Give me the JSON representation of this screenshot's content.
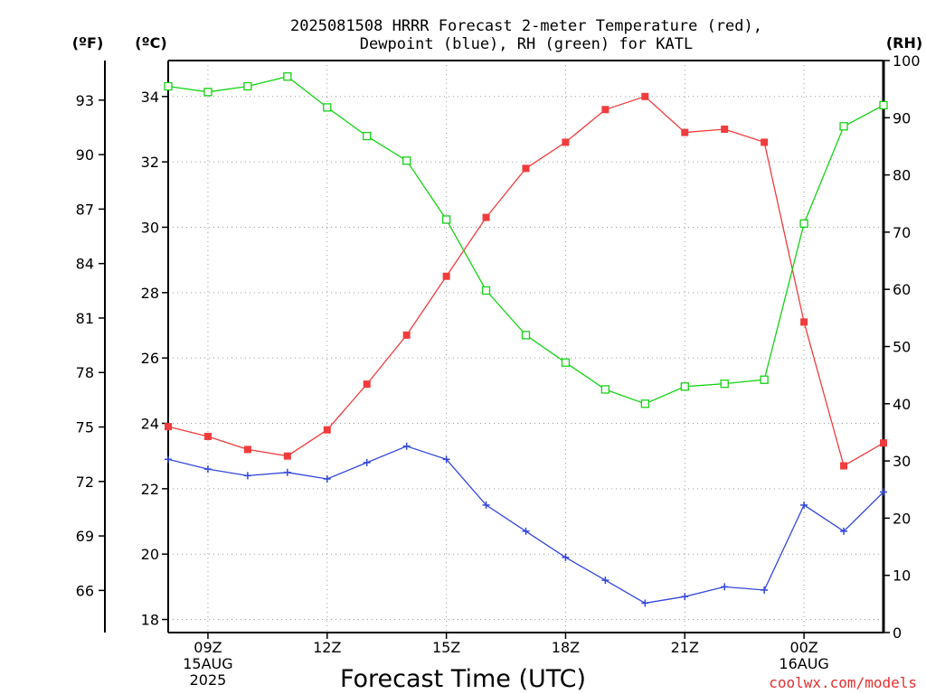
{
  "chart_data": {
    "type": "line",
    "title_lines": [
      "2025081508 HRRR Forecast 2-meter Temperature (red),",
      "Dewpoint (blue), RH (green) for KATL"
    ],
    "xlabel": "Forecast Time (UTC)",
    "credit": "coolwx.com/models",
    "x": [
      "08Z",
      "09Z",
      "10Z",
      "11Z",
      "12Z",
      "13Z",
      "14Z",
      "15Z",
      "16Z",
      "17Z",
      "18Z",
      "19Z",
      "20Z",
      "21Z",
      "22Z",
      "23Z",
      "00Z",
      "01Z",
      "02Z"
    ],
    "x_tick_labels": [
      {
        "x": "09Z",
        "lines": [
          "09Z",
          "15AUG",
          "2025"
        ]
      },
      {
        "x": "12Z",
        "lines": [
          "12Z"
        ]
      },
      {
        "x": "15Z",
        "lines": [
          "15Z"
        ]
      },
      {
        "x": "18Z",
        "lines": [
          "18Z"
        ]
      },
      {
        "x": "21Z",
        "lines": [
          "21Z"
        ]
      },
      {
        "x": "00Z",
        "lines": [
          "00Z",
          "16AUG"
        ]
      }
    ],
    "y_celsius": {
      "unit_label": "(ºC)",
      "ylim": [
        17.6,
        35.1
      ],
      "ticks": [
        18,
        20,
        22,
        24,
        26,
        28,
        30,
        32,
        34
      ]
    },
    "y_fahrenheit": {
      "unit_label": "(ºF)",
      "ticks": [
        66,
        69,
        72,
        75,
        78,
        81,
        84,
        87,
        90,
        93
      ]
    },
    "y_rh": {
      "unit_label": "(RH)",
      "ylim": [
        0,
        100
      ],
      "ticks": [
        0,
        10,
        20,
        30,
        40,
        50,
        60,
        70,
        80,
        90,
        100
      ]
    },
    "series": [
      {
        "name": "Temperature",
        "axis": "celsius",
        "color": "#f03c3c",
        "marker": "filled-square",
        "values": [
          23.9,
          23.6,
          23.2,
          23.0,
          23.8,
          25.2,
          26.7,
          28.5,
          30.3,
          31.8,
          32.6,
          33.6,
          34.0,
          32.9,
          33.0,
          32.6,
          27.1,
          22.7,
          23.4
        ]
      },
      {
        "name": "Dewpoint",
        "axis": "celsius",
        "color": "#3246dc",
        "marker": "plus",
        "values": [
          22.9,
          22.6,
          22.4,
          22.5,
          22.3,
          22.8,
          23.3,
          22.9,
          21.5,
          20.7,
          19.9,
          19.2,
          18.5,
          18.7,
          19.0,
          18.9,
          21.5,
          20.7,
          21.9
        ]
      },
      {
        "name": "RH",
        "axis": "rh",
        "color": "#14d214",
        "marker": "open-square",
        "values": [
          95.5,
          94.5,
          95.5,
          97.2,
          91.8,
          86.8,
          82.5,
          72.2,
          59.8,
          52.0,
          47.2,
          42.5,
          40.0,
          43.0,
          43.5,
          44.2,
          71.5,
          88.5,
          92.2
        ]
      }
    ]
  }
}
